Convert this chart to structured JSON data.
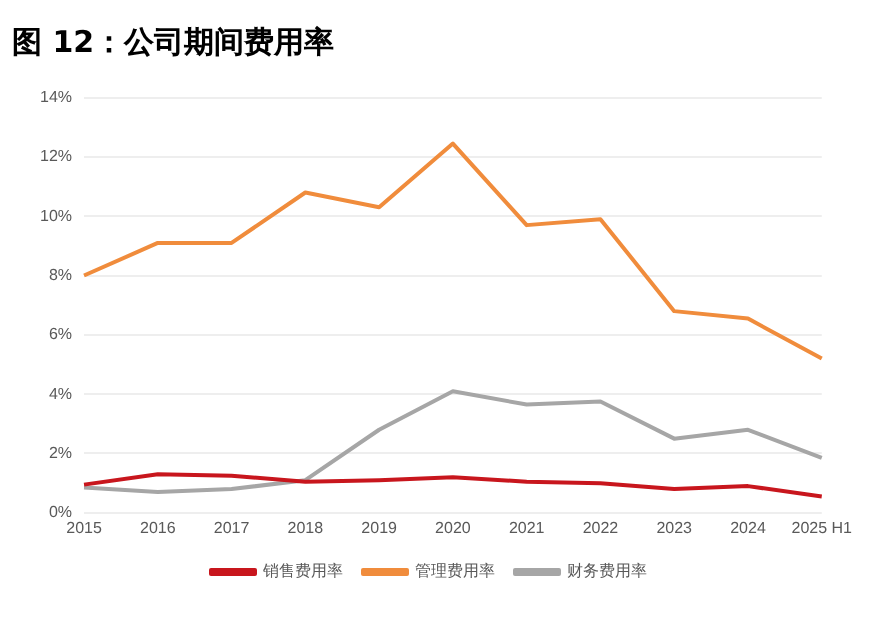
{
  "chart_data": {
    "type": "line",
    "title": "图 12：公司期间费用率",
    "categories": [
      "2015",
      "2016",
      "2017",
      "2018",
      "2019",
      "2020",
      "2021",
      "2022",
      "2023",
      "2024",
      "2025 H1"
    ],
    "series": [
      {
        "name": "销售费用率",
        "color": "#c8161d",
        "values": [
          0.95,
          1.3,
          1.25,
          1.05,
          1.1,
          1.2,
          1.05,
          1.0,
          0.8,
          0.9,
          0.55
        ]
      },
      {
        "name": "管理费用率",
        "color": "#f08c3c",
        "values": [
          8.0,
          9.1,
          9.1,
          10.8,
          10.3,
          12.45,
          9.7,
          9.9,
          6.8,
          6.55,
          5.2
        ]
      },
      {
        "name": "财务费用率",
        "color": "#a6a6a6",
        "values": [
          0.85,
          0.7,
          0.8,
          1.1,
          2.8,
          4.1,
          3.65,
          3.75,
          2.5,
          2.8,
          1.85
        ]
      }
    ],
    "ylim": [
      0,
      14
    ],
    "yticks": [
      {
        "value": 0,
        "label": "0%"
      },
      {
        "value": 2,
        "label": "2%"
      },
      {
        "value": 4,
        "label": "4%"
      },
      {
        "value": 6,
        "label": "6%"
      },
      {
        "value": 8,
        "label": "8%"
      },
      {
        "value": 10,
        "label": "10%"
      },
      {
        "value": 12,
        "label": "12%"
      },
      {
        "value": 14,
        "label": "14%"
      }
    ],
    "grid": "y",
    "legend": "bottom",
    "marker": "none",
    "line_style": "solid"
  }
}
